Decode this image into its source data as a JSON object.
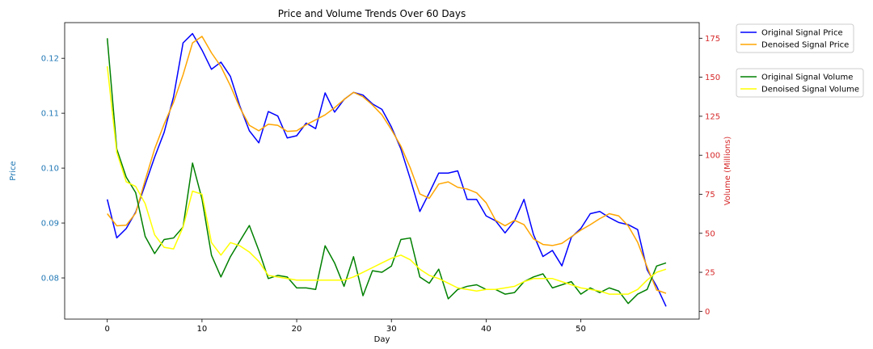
{
  "chart_data": {
    "type": "line",
    "title": "Price and Volume Trends Over 60 Days",
    "xlabel": "Day",
    "ylabel_left": "Price",
    "ylabel_right": "Volume (Millions)",
    "xlim": [
      -4.5,
      62.5
    ],
    "ylim_left": [
      0.0725,
      0.1265
    ],
    "ylim_right": [
      -5,
      185
    ],
    "x_ticks": [
      0,
      10,
      20,
      30,
      40,
      50
    ],
    "y_ticks_left": [
      0.08,
      0.09,
      0.1,
      0.11,
      0.12
    ],
    "y_ticks_left_labels": [
      "0.08",
      "0.09",
      "0.10",
      "0.11",
      "0.12"
    ],
    "y_ticks_right": [
      0,
      25,
      50,
      75,
      100,
      125,
      150,
      175
    ],
    "grid": false,
    "colors": {
      "left_axis": "#1f77b4",
      "right_axis": "#d62728"
    },
    "x": [
      0,
      1,
      2,
      3,
      4,
      5,
      6,
      7,
      8,
      9,
      10,
      11,
      12,
      13,
      14,
      15,
      16,
      17,
      18,
      19,
      20,
      21,
      22,
      23,
      24,
      25,
      26,
      27,
      28,
      29,
      30,
      31,
      32,
      33,
      34,
      35,
      36,
      37,
      38,
      39,
      40,
      41,
      42,
      43,
      44,
      45,
      46,
      47,
      48,
      49,
      50,
      51,
      52,
      53,
      54,
      55,
      56,
      57,
      58,
      59
    ],
    "series": [
      {
        "name": "Original Signal Price",
        "axis": "left",
        "color": "#0000ff",
        "values": [
          0.0943,
          0.0873,
          0.089,
          0.092,
          0.097,
          0.102,
          0.1065,
          0.113,
          0.1228,
          0.1245,
          0.1215,
          0.118,
          0.1193,
          0.1167,
          0.1113,
          0.1068,
          0.1046,
          0.1103,
          0.1095,
          0.1055,
          0.1059,
          0.1082,
          0.1072,
          0.1137,
          0.1102,
          0.1125,
          0.1138,
          0.1133,
          0.1117,
          0.1107,
          0.1075,
          0.1035,
          0.098,
          0.0921,
          0.0955,
          0.0991,
          0.0991,
          0.0995,
          0.0943,
          0.0943,
          0.0913,
          0.0904,
          0.0882,
          0.0904,
          0.0943,
          0.0879,
          0.0839,
          0.085,
          0.0822,
          0.0874,
          0.089,
          0.0917,
          0.0921,
          0.091,
          0.0901,
          0.0897,
          0.0888,
          0.0815,
          0.0785,
          0.0748
        ]
      },
      {
        "name": "Denoised Signal Price",
        "axis": "left",
        "color": "#ffa500",
        "values": [
          0.0917,
          0.0895,
          0.0896,
          0.0918,
          0.0978,
          0.1035,
          0.108,
          0.112,
          0.117,
          0.1228,
          0.124,
          0.121,
          0.1185,
          0.115,
          0.111,
          0.1078,
          0.1068,
          0.108,
          0.1078,
          0.1067,
          0.1068,
          0.1079,
          0.1088,
          0.1097,
          0.111,
          0.1125,
          0.1138,
          0.113,
          0.1115,
          0.1097,
          0.107,
          0.104,
          0.1,
          0.0953,
          0.0945,
          0.0971,
          0.0975,
          0.0965,
          0.0962,
          0.0955,
          0.0937,
          0.0905,
          0.0895,
          0.0905,
          0.0897,
          0.0871,
          0.0861,
          0.0859,
          0.0863,
          0.0875,
          0.0887,
          0.0897,
          0.0908,
          0.0917,
          0.0913,
          0.0895,
          0.0865,
          0.082,
          0.0778,
          0.0772
        ]
      },
      {
        "name": "Original Signal Volume",
        "axis": "right",
        "color": "#008000",
        "values": [
          175,
          104,
          86,
          76,
          48,
          37,
          46,
          47,
          54,
          95,
          72,
          36,
          22,
          35,
          45,
          55,
          39,
          21,
          23,
          22,
          15,
          15,
          14,
          42,
          31,
          16,
          35,
          10,
          26,
          25,
          29,
          46,
          47,
          22,
          18,
          27,
          8,
          14,
          16,
          17,
          14,
          14,
          11,
          12,
          19,
          22,
          24,
          15,
          17,
          19,
          11,
          15,
          12,
          15,
          13,
          5,
          11,
          14,
          29,
          31
        ]
      },
      {
        "name": "Denoised Signal Volume",
        "axis": "right",
        "color": "#ffff00",
        "values": [
          157,
          102,
          83,
          80,
          69,
          49,
          41,
          40,
          54,
          77,
          75,
          44,
          36,
          44,
          42,
          38,
          32,
          23,
          22,
          21,
          20,
          20,
          20,
          20,
          20,
          20,
          22,
          25,
          28,
          31,
          34,
          36,
          33,
          27,
          23,
          21,
          18,
          15,
          14,
          13,
          14,
          14,
          15,
          16,
          19,
          21,
          21,
          21,
          19,
          17,
          15,
          14,
          13,
          11,
          11,
          11,
          14,
          20,
          25,
          27
        ]
      }
    ],
    "legend_placement": "outside-right",
    "legends": [
      {
        "entries": [
          "Original Signal Price",
          "Denoised Signal Price"
        ]
      },
      {
        "entries": [
          "Original Signal Volume",
          "Denoised Signal Volume"
        ]
      }
    ]
  }
}
